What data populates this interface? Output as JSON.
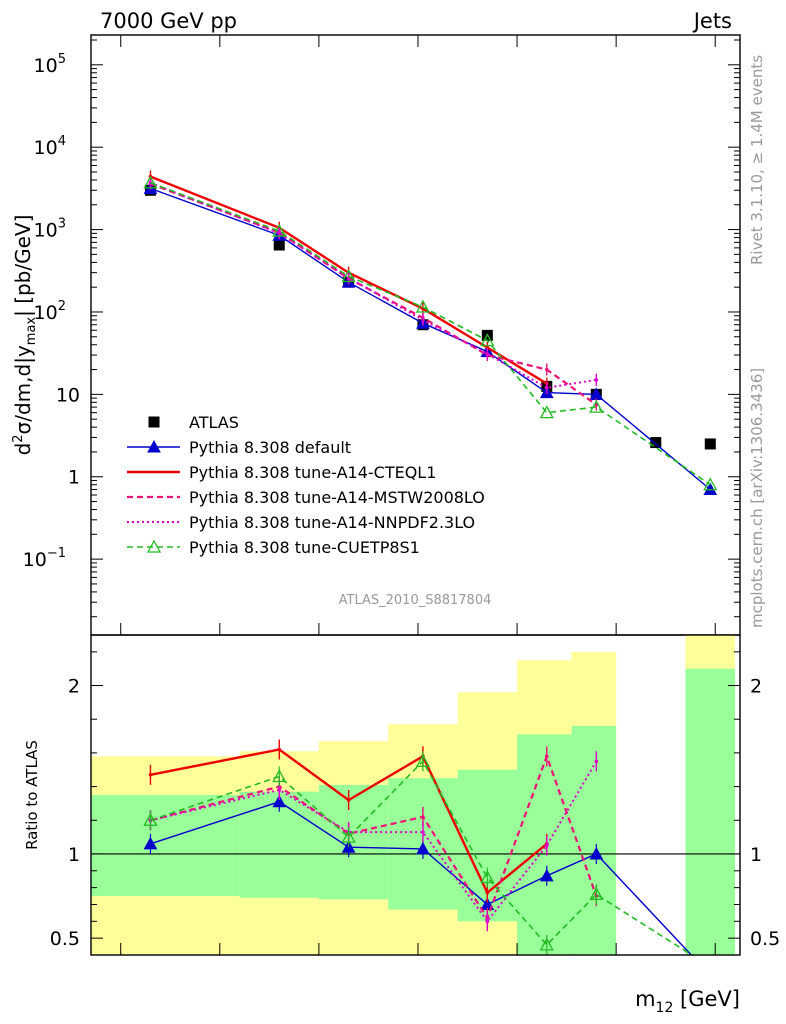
{
  "header": {
    "left": "7000 GeV pp",
    "right": "Jets"
  },
  "side_labels": {
    "rivet": "Rivet 3.1.10, ≥ 1.4M events",
    "mcplots": "mcplots.cern.ch [arXiv:1306.3436]"
  },
  "analysis_label": "ATLAS_2010_S8817804",
  "chart_data": [
    {
      "type": "line",
      "panel": "main",
      "y_scale": "log",
      "ylim": [
        0.012,
        230000
      ],
      "ylabel": "d²σ/dm,d|y_max| [pb/GeV]",
      "ylabel_parts": {
        "base": "d",
        "sup": "2",
        "mid": "σ/dm,d|y",
        "sub": "max",
        "end": "| [pb/GeV]"
      },
      "yticks": [
        {
          "value": 100000,
          "label": "10",
          "exp": "5"
        },
        {
          "value": 10000,
          "label": "10",
          "exp": "4"
        },
        {
          "value": 1000,
          "label": "10",
          "exp": "3"
        },
        {
          "value": 100,
          "label": "10",
          "exp": "2"
        },
        {
          "value": 10,
          "label": "10",
          "exp": ""
        },
        {
          "value": 1,
          "label": "1",
          "exp": ""
        },
        {
          "value": 0.1,
          "label": "10",
          "exp": "−1"
        }
      ],
      "bins": [
        {
          "low": 70,
          "center": 130,
          "high": 220
        },
        {
          "low": 220,
          "center": 260,
          "high": 300
        },
        {
          "low": 300,
          "center": 330,
          "high": 370
        },
        {
          "low": 370,
          "center": 405,
          "high": 440
        },
        {
          "low": 440,
          "center": 470,
          "high": 500
        },
        {
          "low": 500,
          "center": 530,
          "high": 555
        },
        {
          "low": 555,
          "center": 580,
          "high": 605
        },
        {
          "low": 605,
          "center": 640,
          "high": 670
        },
        {
          "low": 670,
          "center": 695,
          "high": 720
        }
      ],
      "legend": [
        {
          "label": "ATLAS",
          "color": "#000000",
          "marker": "square",
          "line": "none"
        },
        {
          "label": "Pythia 8.308 default",
          "color": "#0000cc",
          "marker": "triangle",
          "line": "solid"
        },
        {
          "label": "Pythia 8.308 tune-A14-CTEQL1",
          "color": "#ee0000",
          "marker": "none",
          "line": "solid-thick"
        },
        {
          "label": "Pythia 8.308 tune-A14-MSTW2008LO",
          "color": "#ee1177",
          "marker": "none",
          "line": "dashed"
        },
        {
          "label": "Pythia 8.308 tune-A14-NNPDF2.3LO",
          "color": "#dd00cc",
          "marker": "none",
          "line": "dotted"
        },
        {
          "label": "Pythia 8.308 tune-CUETP8S1",
          "color": "#22bb22",
          "marker": "triangle-open",
          "line": "dashed"
        }
      ],
      "series": [
        {
          "name": "ATLAS",
          "x": [
            130,
            260,
            330,
            405,
            470,
            530,
            580,
            640,
            695
          ],
          "values": [
            3000,
            650,
            230,
            70,
            52,
            12.5,
            10,
            2.6,
            2.5
          ]
        },
        {
          "name": "Pythia 8.308 default",
          "x": [
            130,
            260,
            330,
            405,
            470,
            530,
            580,
            695
          ],
          "values": [
            3150,
            850,
            230,
            73,
            33,
            10.5,
            10,
            0.7
          ]
        },
        {
          "name": "Pythia 8.308 tune-A14-CTEQL1",
          "x": [
            130,
            260,
            330,
            405,
            470,
            530
          ],
          "values": [
            4400,
            1050,
            300,
            110,
            37,
            13.5
          ]
        },
        {
          "name": "Pythia 8.308 tune-A14-MSTW2008LO",
          "x": [
            130,
            260,
            330,
            405,
            470,
            530,
            580
          ],
          "values": [
            3600,
            920,
            255,
            85,
            30,
            20,
            7.5
          ]
        },
        {
          "name": "Pythia 8.308 tune-A14-NNPDF2.3LO",
          "x": [
            130,
            260,
            330,
            405,
            470,
            530,
            580
          ],
          "values": [
            3700,
            900,
            260,
            80,
            31,
            12,
            15
          ]
        },
        {
          "name": "Pythia 8.308 tune-CUETP8S1",
          "x": [
            130,
            260,
            330,
            405,
            470,
            530,
            580,
            695
          ],
          "values": [
            3700,
            960,
            270,
            115,
            45,
            6,
            7,
            0.8
          ]
        }
      ]
    },
    {
      "type": "line",
      "panel": "ratio",
      "ylabel": "Ratio to ATLAS",
      "ylim": [
        0.4,
        2.3
      ],
      "yticks": [
        {
          "value": 2,
          "label": "2"
        },
        {
          "value": 1,
          "label": "1"
        },
        {
          "value": 0.5,
          "label": "0.5"
        }
      ],
      "reference": 1,
      "uncertainty_bands": [
        {
          "low": 70,
          "high": 220,
          "green": [
            0.75,
            1.35
          ],
          "yellow": [
            0.38,
            1.58
          ]
        },
        {
          "low": 220,
          "high": 300,
          "green": [
            0.74,
            1.37
          ],
          "yellow": [
            0.37,
            1.61
          ]
        },
        {
          "low": 300,
          "high": 370,
          "green": [
            0.73,
            1.41
          ],
          "yellow": [
            0.37,
            1.67
          ]
        },
        {
          "low": 370,
          "high": 440,
          "green": [
            0.67,
            1.45
          ],
          "yellow": [
            0.37,
            1.77
          ]
        },
        {
          "low": 440,
          "high": 500,
          "green": [
            0.6,
            1.5
          ],
          "yellow": [
            0.37,
            1.96
          ]
        },
        {
          "low": 500,
          "high": 555,
          "green": [
            0.37,
            1.71
          ],
          "yellow": [
            0.37,
            2.15
          ]
        },
        {
          "low": 555,
          "high": 600,
          "green": [
            0.37,
            1.76
          ],
          "yellow": [
            0.37,
            2.2
          ]
        },
        {
          "low": 670,
          "high": 720,
          "green": [
            0.37,
            2.1
          ],
          "yellow": [
            0.37,
            2.35
          ]
        }
      ],
      "series": [
        {
          "name": "Pythia 8.308 default",
          "x": [
            130,
            260,
            330,
            405,
            470,
            530,
            580,
            695
          ],
          "values": [
            1.06,
            1.31,
            1.04,
            1.03,
            0.7,
            0.87,
            1.0,
            0.28
          ]
        },
        {
          "name": "Pythia 8.308 tune-A14-CTEQL1",
          "x": [
            130,
            260,
            330,
            405,
            470,
            530
          ],
          "values": [
            1.47,
            1.62,
            1.32,
            1.58,
            0.77,
            1.06
          ]
        },
        {
          "name": "Pythia 8.308 tune-A14-MSTW2008LO",
          "x": [
            130,
            260,
            330,
            405,
            470,
            530,
            580
          ],
          "values": [
            1.2,
            1.4,
            1.12,
            1.22,
            0.62,
            1.58,
            0.75
          ]
        },
        {
          "name": "Pythia 8.308 tune-A14-NNPDF2.3LO",
          "x": [
            130,
            260,
            330,
            405,
            470,
            530,
            580
          ],
          "values": [
            1.2,
            1.38,
            1.13,
            1.13,
            0.6,
            1.05,
            1.55
          ]
        },
        {
          "name": "Pythia 8.308 tune-CUETP8S1",
          "x": [
            130,
            260,
            330,
            405,
            470,
            530,
            580,
            695
          ],
          "values": [
            1.2,
            1.46,
            1.1,
            1.55,
            0.86,
            0.46,
            0.76,
            0.33
          ]
        }
      ],
      "xlabel": "m_12 [GeV]",
      "xlabel_parts": {
        "base": "m",
        "sub": "12",
        "end": " [GeV]"
      }
    }
  ]
}
